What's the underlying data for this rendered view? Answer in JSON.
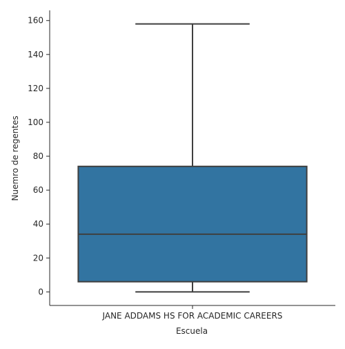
{
  "chart_data": {
    "type": "box",
    "xlabel": "Escuela",
    "ylabel": "Nuemro de regentes",
    "categories": [
      "JANE ADDAMS HS FOR ACADEMIC CAREERS"
    ],
    "boxes": [
      {
        "category": "JANE ADDAMS HS FOR ACADEMIC CAREERS",
        "min": 0,
        "q1": 6,
        "median": 34,
        "q3": 74,
        "max": 158
      }
    ],
    "y_ticks": [
      0,
      20,
      40,
      60,
      80,
      100,
      120,
      140,
      160
    ],
    "ylim": [
      -8,
      166
    ],
    "grid": false,
    "box_color": "#3274a1",
    "line_color": "#3f3f3f"
  }
}
